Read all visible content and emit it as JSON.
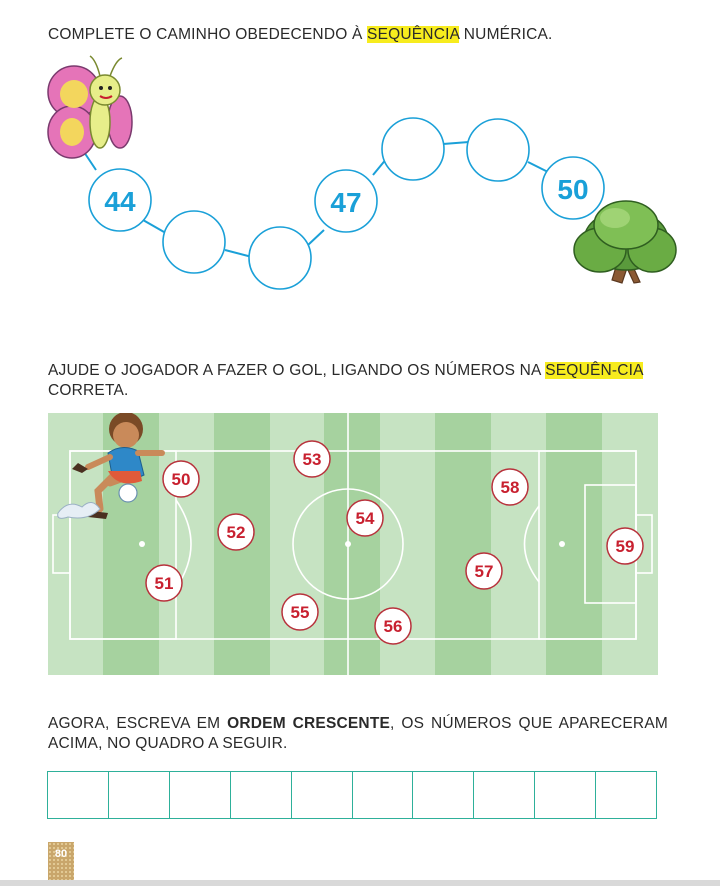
{
  "section1": {
    "instruction_before": "COMPLETE O CAMINHO OBEDECENDO À ",
    "instruction_highlight": "SEQUÊNCIA",
    "instruction_after": " NUMÉRICA.",
    "path_numbers": [
      "44",
      "",
      "",
      "47",
      "",
      "",
      "50"
    ]
  },
  "section2": {
    "instruction_before": "AJUDE O JOGADOR A FAZER O GOL, LIGANDO OS NÚMEROS NA ",
    "instruction_highlight": "SEQUÊN-CIA",
    "instruction_after": " CORRETA.",
    "field_numbers": [
      "50",
      "51",
      "52",
      "53",
      "54",
      "55",
      "56",
      "57",
      "58",
      "59"
    ]
  },
  "section3": {
    "instruction_before": "AGORA, ESCREVA EM ",
    "instruction_bold": "ORDEM CRESCENTE",
    "instruction_after": ", OS NÚMEROS QUE APARECERAM ACIMA, NO QUADRO A SEGUIR.",
    "answer_cells": 10
  },
  "page_number": "80",
  "colors": {
    "highlight": "#f7ec1e",
    "circle_stroke": "#1aa0d8",
    "number_blue": "#1aa0d8",
    "number_red": "#c8202f",
    "field_light": "#c6e3c2",
    "field_dark": "#a6d29f",
    "grid_border": "#2eb09a"
  }
}
